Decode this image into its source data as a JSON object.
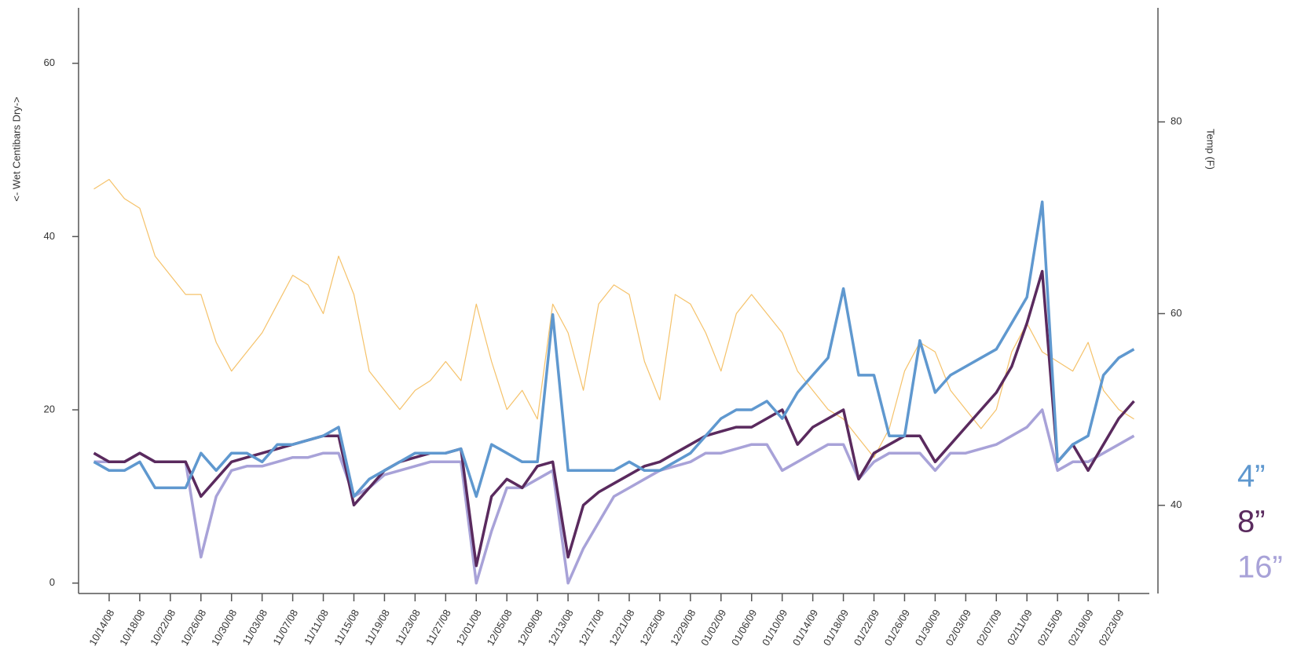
{
  "chart_data": {
    "type": "line",
    "y_label": "<- Wet  Centibars  Dry->",
    "y2_label": "Temp (F)",
    "x": [
      "10/12/08",
      "10/14/08",
      "10/16/08",
      "10/18/08",
      "10/20/08",
      "10/22/08",
      "10/24/08",
      "10/26/08",
      "10/28/08",
      "10/30/08",
      "11/01/08",
      "11/03/08",
      "11/05/08",
      "11/07/08",
      "11/09/08",
      "11/11/08",
      "11/13/08",
      "11/15/08",
      "11/17/08",
      "11/19/08",
      "11/21/08",
      "11/23/08",
      "11/25/08",
      "11/27/08",
      "11/29/08",
      "12/01/08",
      "12/03/08",
      "12/05/08",
      "12/07/08",
      "12/09/08",
      "12/11/08",
      "12/13/08",
      "12/15/08",
      "12/17/08",
      "12/19/08",
      "12/21/08",
      "12/23/08",
      "12/25/08",
      "12/27/08",
      "12/29/08",
      "12/31/08",
      "01/02/09",
      "01/04/09",
      "01/06/09",
      "01/08/09",
      "01/10/09",
      "01/12/09",
      "01/14/09",
      "01/16/09",
      "01/18/09",
      "01/20/09",
      "01/22/09",
      "01/24/09",
      "01/26/09",
      "01/28/09",
      "01/30/09",
      "02/01/09",
      "02/03/09",
      "02/05/09",
      "02/07/09",
      "02/09/09",
      "02/11/09",
      "02/13/09",
      "02/15/09",
      "02/17/09",
      "02/19/09",
      "02/21/09",
      "02/23/09",
      "02/25/09"
    ],
    "xlim": [
      "10/10/08",
      "02/27/09"
    ],
    "xticks": [
      "10/14/08",
      "10/18/08",
      "10/22/08",
      "10/26/08",
      "10/30/08",
      "11/03/08",
      "11/07/08",
      "11/11/08",
      "11/15/08",
      "11/19/08",
      "11/23/08",
      "11/27/08",
      "12/01/08",
      "12/05/08",
      "12/09/08",
      "12/13/08",
      "12/17/08",
      "12/21/08",
      "12/25/08",
      "12/29/08",
      "01/02/09",
      "01/06/09",
      "01/10/09",
      "01/14/09",
      "01/18/09",
      "01/22/09",
      "01/26/09",
      "01/30/09",
      "02/03/09",
      "02/07/09",
      "02/11/09",
      "02/15/09",
      "02/19/09",
      "02/23/09"
    ],
    "ylim": [
      -1.2,
      66.4
    ],
    "yticks": [
      0,
      20,
      40,
      60
    ],
    "y2lim": [
      30.8,
      91.9
    ],
    "y2ticks": [
      40,
      60,
      80
    ],
    "legend": "right",
    "series": [
      {
        "name": "4”",
        "color": "#5f98cf",
        "values": [
          14,
          13,
          13,
          14,
          11,
          11,
          11,
          15,
          13,
          15,
          15,
          14,
          16,
          16,
          16.5,
          17,
          18,
          10,
          12,
          13,
          14,
          15,
          15,
          15,
          15.5,
          10,
          16,
          15,
          14,
          14,
          31,
          13,
          13,
          13,
          13,
          14,
          13,
          13,
          14,
          15,
          17,
          19,
          20,
          20,
          21,
          19,
          22,
          24,
          26,
          34,
          24,
          24,
          17,
          17,
          28,
          22,
          24,
          25,
          26,
          27,
          30,
          33,
          44,
          14,
          16,
          17,
          24,
          26,
          27
        ]
      },
      {
        "name": "8”",
        "color": "#5a2a5e",
        "values": [
          15,
          14,
          14,
          15,
          14,
          14,
          14,
          10,
          12,
          14,
          14.5,
          15,
          15.5,
          16,
          16.5,
          17,
          17,
          9,
          11,
          13,
          14,
          14.5,
          15,
          15,
          15.5,
          2,
          10,
          12,
          11,
          13.5,
          14,
          3,
          9,
          10.5,
          11.5,
          12.5,
          13.5,
          14,
          15,
          16,
          17,
          17.5,
          18,
          18,
          19,
          20,
          16,
          18,
          19,
          20,
          12,
          15,
          16,
          17,
          17,
          14,
          16,
          18,
          20,
          22,
          25,
          30,
          36,
          14,
          16,
          13,
          16,
          19,
          21
        ]
      },
      {
        "name": "16”",
        "color": "#a8a2d8",
        "values": [
          14,
          14,
          14,
          15,
          14,
          14,
          14,
          3,
          10,
          13,
          13.5,
          13.5,
          14,
          14.5,
          14.5,
          15,
          15,
          10,
          11,
          12.5,
          13,
          13.5,
          14,
          14,
          14,
          0,
          6,
          11,
          11,
          12,
          13,
          0,
          4,
          7,
          10,
          11,
          12,
          13,
          13.5,
          14,
          15,
          15,
          15.5,
          16,
          16,
          13,
          14,
          15,
          16,
          16,
          12,
          14,
          15,
          15,
          15,
          13,
          15,
          15,
          15.5,
          16,
          17,
          18,
          20,
          13,
          14,
          14,
          15,
          16,
          17
        ]
      },
      {
        "axis": "y2",
        "color": "#f5c26a",
        "values": [
          73,
          74,
          72,
          71,
          66,
          64,
          62,
          62,
          57,
          54,
          56,
          58,
          61,
          64,
          63,
          60,
          66,
          62,
          54,
          52,
          50,
          52,
          53,
          55,
          53,
          61,
          55,
          50,
          52,
          49,
          61,
          58,
          52,
          61,
          63,
          62,
          55,
          51,
          62,
          61,
          58,
          54,
          60,
          62,
          60,
          58,
          54,
          52,
          50,
          49,
          47,
          45,
          48,
          54,
          57,
          56,
          52,
          50,
          48,
          50,
          56,
          59,
          56,
          55,
          54,
          57,
          52,
          50,
          49
        ]
      }
    ]
  }
}
